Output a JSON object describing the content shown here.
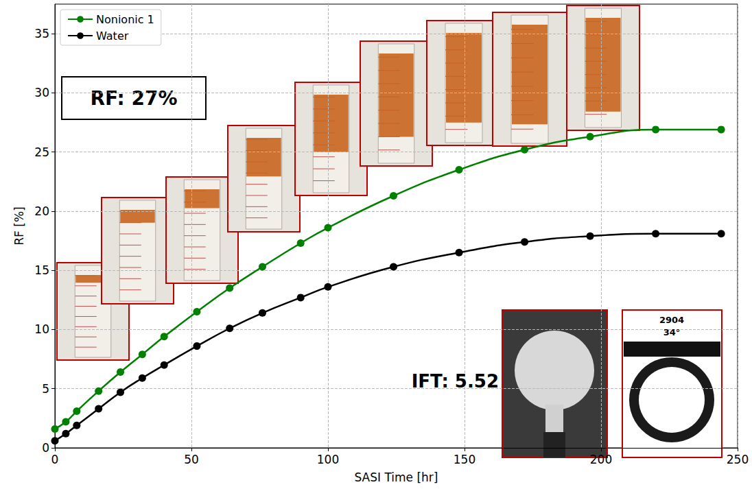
{
  "chart_data": {
    "type": "line",
    "x_label": "SASI Time [hr]",
    "y_label": "RF [%]",
    "xlim": [
      0,
      250
    ],
    "xticks": [
      0,
      50,
      100,
      150,
      200,
      250
    ],
    "ylim": [
      0,
      37.5
    ],
    "yticks": [
      0,
      5,
      10,
      15,
      20,
      25,
      30,
      35
    ],
    "grid": true,
    "legend": "upper left",
    "x": [
      0,
      4,
      8,
      16,
      24,
      32,
      40,
      52,
      64,
      76,
      90,
      100,
      124,
      148,
      172,
      196,
      220,
      244
    ],
    "series": [
      {
        "name": "Nonionic 1",
        "color": "#008000",
        "marker": "circle",
        "line_style": "solid",
        "values": [
          1.6,
          2.2,
          3.1,
          4.8,
          6.4,
          7.9,
          9.4,
          11.5,
          13.5,
          15.3,
          17.3,
          18.6,
          21.3,
          23.5,
          25.2,
          26.3,
          26.9,
          26.9
        ]
      },
      {
        "name": "Water",
        "color": "#000000",
        "marker": "circle",
        "line_style": "solid",
        "values": [
          0.6,
          1.2,
          1.9,
          3.3,
          4.7,
          5.9,
          7.0,
          8.6,
          10.1,
          11.4,
          12.7,
          13.6,
          15.3,
          16.5,
          17.4,
          17.9,
          18.1,
          18.1
        ]
      }
    ],
    "annotations": [
      "RF: 27%",
      "IFT: 5.52",
      "2904",
      "34°"
    ]
  }
}
